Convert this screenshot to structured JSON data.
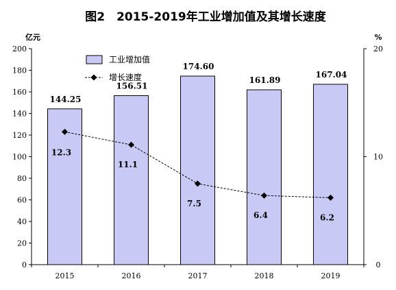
{
  "chart_data": {
    "type": "bar",
    "title": "图2　2015-2019年工业增加值及其增长速度",
    "categories": [
      "2015",
      "2016",
      "2017",
      "2018",
      "2019"
    ],
    "left_axis": {
      "unit": "亿元",
      "ylim": [
        0,
        200
      ],
      "ticks": [
        "0",
        "20",
        "40",
        "60",
        "80",
        "100",
        "120",
        "140",
        "160",
        "180",
        "200"
      ]
    },
    "right_axis": {
      "unit": "%",
      "ylim": [
        0,
        20
      ],
      "ticks": [
        "0",
        "10",
        "20"
      ]
    },
    "series": [
      {
        "name": "工业增加值",
        "type": "bar",
        "axis": "left",
        "values": [
          144.25,
          156.51,
          174.6,
          161.89,
          167.04
        ],
        "labels": [
          "144.25",
          "156.51",
          "174.60",
          "161.89",
          "167.04"
        ]
      },
      {
        "name": "增长速度",
        "type": "line",
        "axis": "right",
        "values": [
          12.3,
          11.1,
          7.5,
          6.4,
          6.2
        ],
        "labels": [
          "12.3",
          "11.1",
          "7.5",
          "6.4",
          "6.2"
        ]
      }
    ],
    "legend": {
      "placement": "top-left"
    },
    "grid": false,
    "colors": {
      "bar_fill": "#c9c9f5",
      "bar_stroke": "#000000",
      "line": "#000000"
    }
  }
}
